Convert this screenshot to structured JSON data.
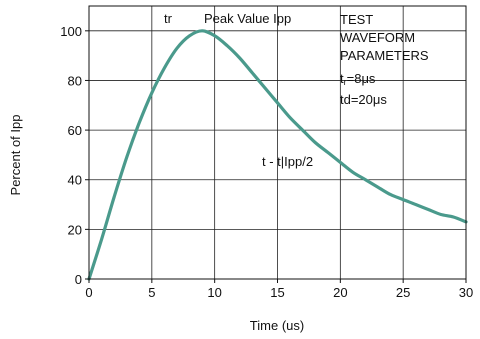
{
  "chart_data": {
    "type": "line",
    "xlabel": "Time (us)",
    "ylabel": "Percent of Ipp",
    "xlim": [
      0,
      30
    ],
    "ylim": [
      0,
      110
    ],
    "x_ticks": [
      0,
      5,
      10,
      15,
      20,
      25,
      30
    ],
    "y_ticks": [
      0,
      20,
      40,
      60,
      80,
      100
    ],
    "grid": true,
    "colors": {
      "curve": "#4a9a8c",
      "grid": "#222222"
    },
    "series": [
      {
        "x": [
          0,
          1,
          2,
          3,
          4,
          5,
          6,
          7,
          8,
          9,
          10,
          11,
          12,
          13,
          14,
          15,
          16,
          17,
          18,
          19,
          20,
          21,
          22,
          23,
          24,
          25,
          26,
          27,
          28,
          29,
          30
        ],
        "values": [
          0,
          16,
          33,
          49,
          63,
          75,
          85,
          93,
          98,
          100,
          98,
          94,
          89,
          83,
          77,
          71,
          65,
          60,
          55,
          51,
          47,
          43,
          40,
          37,
          34,
          32,
          30,
          28,
          26,
          25,
          23
        ]
      }
    ],
    "annotations": {
      "tr": "tr",
      "peak": "Peak Value Ipp",
      "test_line1": "TEST",
      "test_line2": "WAVEFORM",
      "test_line3": "PARAMETERS",
      "tr_value_main": "t",
      "tr_value_sub": "r",
      "tr_value_rest": "=8μs",
      "td_value": "td=20μs",
      "half": "t - t|Ipp/2"
    }
  }
}
